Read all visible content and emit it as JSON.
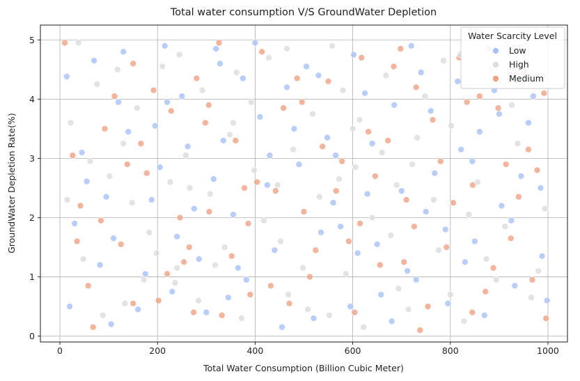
{
  "chart_data": {
    "type": "scatter",
    "title": "Total water consumption V/S GroundWater Depletion",
    "xlabel": "Total Water Consumption (Billion Cubic Meter)",
    "ylabel": "GroundWater Depletion Rate(%)",
    "xlim": [
      -40,
      1040
    ],
    "ylim": [
      -0.1,
      5.25
    ],
    "xticks": [
      0,
      200,
      400,
      600,
      800,
      1000
    ],
    "yticks": [
      0,
      1,
      2,
      3,
      4,
      5
    ],
    "grid": true,
    "legend": {
      "title": "Water Scarcity Level",
      "placement": "top-right",
      "entries": [
        "Low",
        "High",
        "Medium"
      ]
    },
    "series": [
      {
        "name": "Low",
        "color": "#a8c0f8",
        "points": [
          [
            14,
            4.38
          ],
          [
            55,
            2.61
          ],
          [
            82,
            1.2
          ],
          [
            120,
            3.95
          ],
          [
            160,
            0.45
          ],
          [
            188,
            2.3
          ],
          [
            215,
            4.9
          ],
          [
            240,
            1.68
          ],
          [
            262,
            3.2
          ],
          [
            300,
            0.4
          ],
          [
            328,
            4.6
          ],
          [
            355,
            2.05
          ],
          [
            382,
            0.95
          ],
          [
            410,
            3.7
          ],
          [
            440,
            1.45
          ],
          [
            465,
            4.2
          ],
          [
            490,
            2.9
          ],
          [
            520,
            0.3
          ],
          [
            548,
            3.35
          ],
          [
            575,
            1.85
          ],
          [
            602,
            4.75
          ],
          [
            630,
            2.4
          ],
          [
            658,
            0.7
          ],
          [
            685,
            3.9
          ],
          [
            712,
            1.1
          ],
          [
            740,
            4.45
          ],
          [
            768,
            2.75
          ],
          [
            795,
            0.55
          ],
          [
            822,
            3.15
          ],
          [
            850,
            1.6
          ],
          [
            878,
            4.85
          ],
          [
            905,
            2.2
          ],
          [
            932,
            0.85
          ],
          [
            960,
            3.6
          ],
          [
            988,
            1.35
          ],
          [
            30,
            1.9
          ],
          [
            70,
            4.65
          ],
          [
            105,
            0.2
          ],
          [
            140,
            3.45
          ],
          [
            175,
            1.05
          ],
          [
            205,
            2.85
          ],
          [
            250,
            4.05
          ],
          [
            285,
            1.3
          ],
          [
            315,
            2.65
          ],
          [
            345,
            0.65
          ],
          [
            375,
            4.35
          ],
          [
            425,
            2.55
          ],
          [
            455,
            0.15
          ],
          [
            505,
            4.55
          ],
          [
            535,
            1.75
          ],
          [
            565,
            3.05
          ],
          [
            595,
            0.5
          ],
          [
            625,
            4.1
          ],
          [
            650,
            1.55
          ],
          [
            700,
            2.45
          ],
          [
            730,
            0.95
          ],
          [
            760,
            3.8
          ],
          [
            790,
            1.8
          ],
          [
            815,
            4.3
          ],
          [
            845,
            2.95
          ],
          [
            870,
            0.35
          ],
          [
            900,
            3.75
          ],
          [
            925,
            1.95
          ],
          [
            955,
            4.6
          ],
          [
            985,
            2.5
          ],
          [
            45,
            3.1
          ],
          [
            95,
            2.35
          ],
          [
            130,
            4.8
          ],
          [
            195,
            3.55
          ],
          [
            230,
            0.75
          ],
          [
            275,
            2.15
          ],
          [
            335,
            3.3
          ],
          [
            365,
            1.15
          ],
          [
            400,
            4.95
          ],
          [
            480,
            3.5
          ],
          [
            560,
            2.25
          ],
          [
            610,
            1.4
          ],
          [
            680,
            0.25
          ],
          [
            750,
            2.1
          ],
          [
            830,
            1.25
          ],
          [
            890,
            4.15
          ],
          [
            945,
            2.7
          ],
          [
            998,
            0.6
          ],
          [
            20,
            0.5
          ],
          [
            110,
            1.65
          ],
          [
            220,
            3.95
          ],
          [
            320,
            4.85
          ],
          [
            430,
            3.05
          ],
          [
            530,
            4.4
          ],
          [
            640,
            3.25
          ],
          [
            720,
            4.9
          ],
          [
            860,
            3.45
          ],
          [
            970,
            4.05
          ]
        ]
      },
      {
        "name": "High",
        "color": "#dcdcdc",
        "points": [
          [
            22,
            3.6
          ],
          [
            48,
            1.3
          ],
          [
            76,
            4.25
          ],
          [
            102,
            2.7
          ],
          [
            133,
            0.55
          ],
          [
            158,
            3.85
          ],
          [
            183,
            1.75
          ],
          [
            210,
            4.55
          ],
          [
            236,
            0.9
          ],
          [
            266,
            2.5
          ],
          [
            292,
            4.15
          ],
          [
            318,
            1.2
          ],
          [
            348,
            3.4
          ],
          [
            372,
            0.3
          ],
          [
            398,
            2.8
          ],
          [
            428,
            4.7
          ],
          [
            452,
            1.6
          ],
          [
            478,
            3.15
          ],
          [
            508,
            0.45
          ],
          [
            532,
            2.35
          ],
          [
            558,
            4.9
          ],
          [
            586,
            1.05
          ],
          [
            614,
            3.65
          ],
          [
            640,
            2.0
          ],
          [
            668,
            4.4
          ],
          [
            694,
            0.8
          ],
          [
            722,
            2.9
          ],
          [
            748,
            4.05
          ],
          [
            776,
            1.45
          ],
          [
            802,
            3.55
          ],
          [
            828,
            0.25
          ],
          [
            856,
            2.6
          ],
          [
            884,
            4.5
          ],
          [
            912,
            1.85
          ],
          [
            938,
            3.25
          ],
          [
            966,
            0.65
          ],
          [
            994,
            2.15
          ],
          [
            38,
            4.95
          ],
          [
            88,
            0.35
          ],
          [
            148,
            2.25
          ],
          [
            198,
            1.4
          ],
          [
            258,
            3.05
          ],
          [
            308,
            2.4
          ],
          [
            362,
            4.45
          ],
          [
            418,
            1.95
          ],
          [
            468,
            0.7
          ],
          [
            518,
            3.75
          ],
          [
            572,
            2.65
          ],
          [
            622,
            0.15
          ],
          [
            678,
            1.7
          ],
          [
            732,
            3.35
          ],
          [
            786,
            4.65
          ],
          [
            838,
            2.05
          ],
          [
            894,
            0.95
          ],
          [
            948,
            4.25
          ],
          [
            62,
            2.95
          ],
          [
            118,
            4.5
          ],
          [
            172,
            0.95
          ],
          [
            226,
            2.6
          ],
          [
            284,
            0.6
          ],
          [
            338,
            1.5
          ],
          [
            392,
            3.95
          ],
          [
            446,
            2.55
          ],
          [
            498,
            1.15
          ],
          [
            552,
            0.35
          ],
          [
            606,
            2.85
          ],
          [
            660,
            3.1
          ],
          [
            714,
            0.45
          ],
          [
            766,
            2.3
          ],
          [
            820,
            4.75
          ],
          [
            874,
            1.3
          ],
          [
            926,
            3.9
          ],
          [
            980,
            1.1
          ],
          [
            15,
            2.3
          ],
          [
            130,
            3.25
          ],
          [
            245,
            4.75
          ],
          [
            355,
            3.6
          ],
          [
            465,
            4.85
          ],
          [
            580,
            4.15
          ],
          [
            690,
            2.55
          ],
          [
            800,
            0.7
          ],
          [
            915,
            4.95
          ],
          [
            240,
            1.15
          ],
          [
            600,
            3.5
          ]
        ]
      },
      {
        "name": "Medium",
        "color": "#f0a184",
        "points": [
          [
            10,
            4.95
          ],
          [
            42,
            2.2
          ],
          [
            68,
            0.15
          ],
          [
            92,
            3.5
          ],
          [
            125,
            1.55
          ],
          [
            150,
            4.6
          ],
          [
            178,
            2.75
          ],
          [
            202,
            0.6
          ],
          [
            228,
            3.8
          ],
          [
            254,
            1.25
          ],
          [
            280,
            4.35
          ],
          [
            306,
            2.1
          ],
          [
            332,
            0.35
          ],
          [
            360,
            3.3
          ],
          [
            386,
            1.9
          ],
          [
            414,
            4.8
          ],
          [
            442,
            2.45
          ],
          [
            470,
            0.55
          ],
          [
            496,
            3.95
          ],
          [
            524,
            1.45
          ],
          [
            550,
            4.3
          ],
          [
            578,
            2.95
          ],
          [
            604,
            0.4
          ],
          [
            632,
            3.45
          ],
          [
            656,
            1.2
          ],
          [
            684,
            4.55
          ],
          [
            710,
            2.3
          ],
          [
            738,
            0.1
          ],
          [
            764,
            3.65
          ],
          [
            792,
            1.5
          ],
          [
            818,
            4.7
          ],
          [
            846,
            2.55
          ],
          [
            872,
            0.75
          ],
          [
            898,
            3.85
          ],
          [
            924,
            1.65
          ],
          [
            952,
            4.45
          ],
          [
            978,
            2.8
          ],
          [
            996,
            0.3
          ],
          [
            26,
            3.05
          ],
          [
            84,
            1.95
          ],
          [
            138,
            2.9
          ],
          [
            192,
            4.15
          ],
          [
            246,
            2.0
          ],
          [
            298,
            3.6
          ],
          [
            352,
            1.35
          ],
          [
            404,
            2.6
          ],
          [
            458,
            3.85
          ],
          [
            512,
            1.0
          ],
          [
            566,
            2.45
          ],
          [
            618,
            4.7
          ],
          [
            672,
            3.3
          ],
          [
            726,
            1.85
          ],
          [
            780,
            2.95
          ],
          [
            834,
            3.95
          ],
          [
            888,
            1.15
          ],
          [
            940,
            2.35
          ],
          [
            992,
            4.1
          ],
          [
            58,
            0.85
          ],
          [
            112,
            4.05
          ],
          [
            166,
            3.25
          ],
          [
            220,
            1.05
          ],
          [
            274,
            0.4
          ],
          [
            326,
            4.95
          ],
          [
            378,
            2.5
          ],
          [
            432,
            0.85
          ],
          [
            486,
            4.35
          ],
          [
            538,
            3.2
          ],
          [
            592,
            1.6
          ],
          [
            646,
            2.7
          ],
          [
            698,
            4.85
          ],
          [
            754,
            0.5
          ],
          [
            806,
            2.25
          ],
          [
            860,
            4.05
          ],
          [
            914,
            2.9
          ],
          [
            968,
            0.95
          ],
          [
            35,
            1.6
          ],
          [
            150,
            0.55
          ],
          [
            265,
            1.5
          ],
          [
            390,
            0.7
          ],
          [
            500,
            2.1
          ],
          [
            615,
            1.9
          ],
          [
            730,
            4.2
          ],
          [
            845,
            0.4
          ],
          [
            960,
            3.15
          ],
          [
            305,
            3.9
          ],
          [
            705,
            1.25
          ]
        ]
      }
    ]
  }
}
